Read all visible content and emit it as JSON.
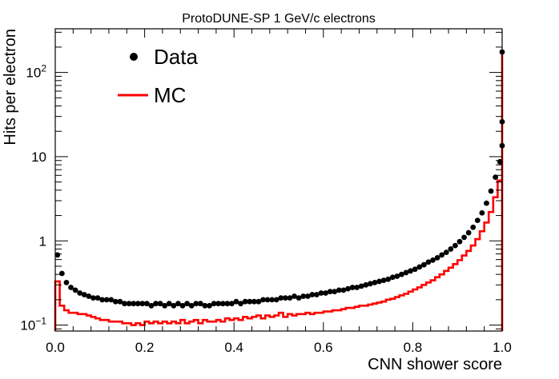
{
  "chart_data": {
    "type": "scatter",
    "title": "ProtoDUNE-SP 1 GeV/c electrons",
    "xlabel": "CNN shower score",
    "ylabel": "Hits per electron",
    "xlim": [
      0,
      1
    ],
    "ylim": [
      0.085,
      330
    ],
    "yscale": "log",
    "grid": false,
    "legend_position": "top-left",
    "x_ticks": [
      {
        "value": 0.0,
        "label": "0.0"
      },
      {
        "value": 0.2,
        "label": "0.2"
      },
      {
        "value": 0.4,
        "label": "0.4"
      },
      {
        "value": 0.6,
        "label": "0.6"
      },
      {
        "value": 0.8,
        "label": "0.8"
      },
      {
        "value": 1.0,
        "label": "1.0"
      }
    ],
    "y_ticks": [
      {
        "value": 0.1,
        "label": "10",
        "sup": "−1"
      },
      {
        "value": 1,
        "label": "1",
        "sup": ""
      },
      {
        "value": 10,
        "label": "10",
        "sup": ""
      },
      {
        "value": 100,
        "label": "10",
        "sup": "2"
      }
    ],
    "bin_width": 0.01,
    "series": [
      {
        "name": "Data",
        "style": "markers",
        "color": "#000000",
        "values": [
          0.68,
          0.41,
          0.32,
          0.28,
          0.26,
          0.24,
          0.23,
          0.22,
          0.21,
          0.21,
          0.2,
          0.2,
          0.2,
          0.19,
          0.19,
          0.18,
          0.18,
          0.18,
          0.18,
          0.18,
          0.18,
          0.17,
          0.18,
          0.18,
          0.17,
          0.18,
          0.17,
          0.18,
          0.17,
          0.18,
          0.17,
          0.18,
          0.18,
          0.17,
          0.17,
          0.18,
          0.18,
          0.18,
          0.18,
          0.18,
          0.19,
          0.18,
          0.19,
          0.19,
          0.19,
          0.19,
          0.2,
          0.2,
          0.2,
          0.2,
          0.21,
          0.21,
          0.21,
          0.22,
          0.21,
          0.22,
          0.22,
          0.23,
          0.23,
          0.24,
          0.24,
          0.25,
          0.25,
          0.26,
          0.26,
          0.27,
          0.28,
          0.28,
          0.29,
          0.3,
          0.31,
          0.32,
          0.33,
          0.34,
          0.35,
          0.37,
          0.38,
          0.4,
          0.42,
          0.44,
          0.46,
          0.49,
          0.52,
          0.56,
          0.59,
          0.63,
          0.68,
          0.73,
          0.8,
          0.88,
          0.98,
          1.1,
          1.25,
          1.45,
          1.75,
          2.15,
          2.8,
          3.9,
          5.7,
          8.7,
          13.5,
          26,
          175
        ]
      },
      {
        "name": "MC",
        "style": "step",
        "color": "#ff0000",
        "values": [
          0.33,
          0.17,
          0.15,
          0.14,
          0.14,
          0.135,
          0.135,
          0.13,
          0.125,
          0.12,
          0.115,
          0.115,
          0.11,
          0.11,
          0.11,
          0.105,
          0.105,
          0.1,
          0.105,
          0.1,
          0.11,
          0.105,
          0.11,
          0.105,
          0.11,
          0.105,
          0.11,
          0.105,
          0.115,
          0.105,
          0.11,
          0.115,
          0.105,
          0.115,
          0.11,
          0.11,
          0.115,
          0.11,
          0.12,
          0.115,
          0.12,
          0.115,
          0.125,
          0.12,
          0.125,
          0.13,
          0.12,
          0.13,
          0.125,
          0.13,
          0.14,
          0.125,
          0.135,
          0.13,
          0.135,
          0.135,
          0.14,
          0.135,
          0.14,
          0.14,
          0.145,
          0.145,
          0.15,
          0.15,
          0.155,
          0.16,
          0.16,
          0.165,
          0.17,
          0.17,
          0.175,
          0.18,
          0.185,
          0.19,
          0.2,
          0.205,
          0.215,
          0.225,
          0.235,
          0.25,
          0.265,
          0.28,
          0.3,
          0.32,
          0.34,
          0.37,
          0.4,
          0.44,
          0.48,
          0.53,
          0.59,
          0.67,
          0.76,
          0.88,
          1.05,
          1.3,
          1.65,
          2.2,
          3.3,
          5.2,
          12.5,
          26,
          170
        ]
      }
    ]
  }
}
